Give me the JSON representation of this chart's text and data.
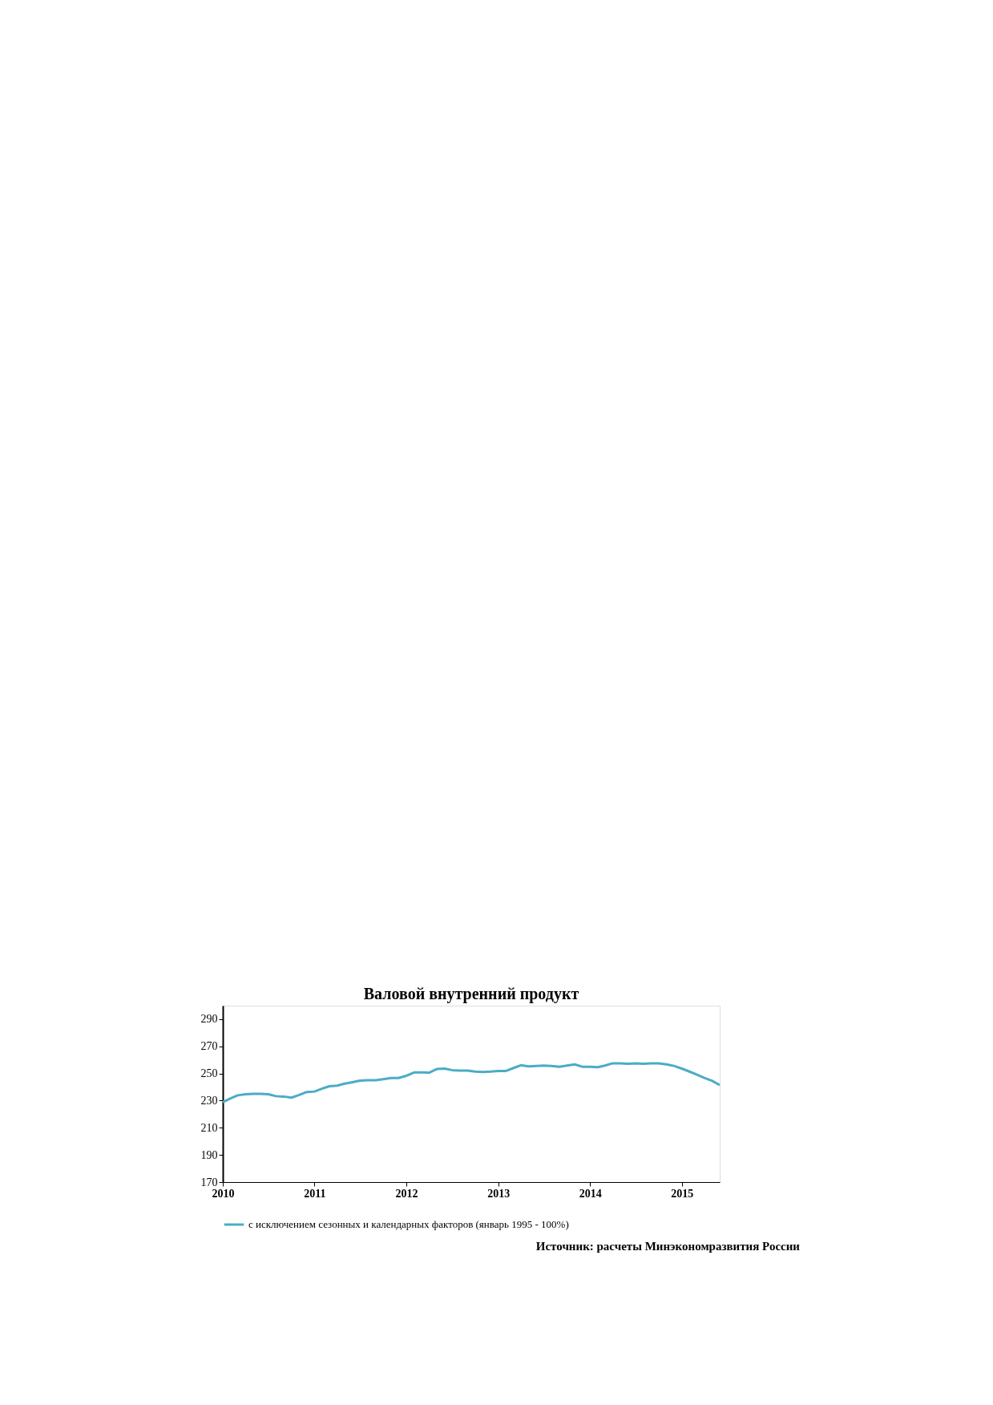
{
  "chart_data": {
    "type": "line",
    "title": "Валовой внутренний продукт",
    "x": [
      "2010-01",
      "2010-02",
      "2010-03",
      "2010-04",
      "2010-05",
      "2010-06",
      "2010-07",
      "2010-08",
      "2010-09",
      "2010-10",
      "2010-11",
      "2010-12",
      "2011-01",
      "2011-02",
      "2011-03",
      "2011-04",
      "2011-05",
      "2011-06",
      "2011-07",
      "2011-08",
      "2011-09",
      "2011-10",
      "2011-11",
      "2011-12",
      "2012-01",
      "2012-02",
      "2012-03",
      "2012-04",
      "2012-05",
      "2012-06",
      "2012-07",
      "2012-08",
      "2012-09",
      "2012-10",
      "2012-11",
      "2012-12",
      "2013-01",
      "2013-02",
      "2013-03",
      "2013-04",
      "2013-05",
      "2013-06",
      "2013-07",
      "2013-08",
      "2013-09",
      "2013-10",
      "2013-11",
      "2013-12",
      "2014-01",
      "2014-02",
      "2014-03",
      "2014-04",
      "2014-05",
      "2014-06",
      "2014-07",
      "2014-08",
      "2014-09",
      "2014-10",
      "2014-11",
      "2014-12",
      "2015-01",
      "2015-02",
      "2015-03",
      "2015-04",
      "2015-05",
      "2015-06"
    ],
    "series": [
      {
        "name": "с исключением сезонных и календарных факторов (январь 1995 - 100%)",
        "color": "#4bacc6",
        "values": [
          228.9,
          231.7,
          233.9,
          234.7,
          235,
          235,
          234.7,
          233.3,
          233,
          232.2,
          234.2,
          236.4,
          236.7,
          238.9,
          240.6,
          241.1,
          242.5,
          243.6,
          244.7,
          245,
          245,
          245.8,
          246.7,
          246.7,
          248.3,
          250.8,
          250.8,
          250.6,
          253.3,
          253.6,
          252.5,
          252.2,
          252.2,
          251.4,
          251.1,
          251.4,
          251.9,
          251.9,
          253.9,
          256.1,
          255.3,
          255.6,
          255.8,
          255.6,
          255,
          255.8,
          256.7,
          255,
          255,
          254.7,
          255.8,
          257.5,
          257.5,
          257.2,
          257.5,
          257.2,
          257.5,
          257.5,
          256.7,
          255.6,
          253.6,
          251.4,
          249.2,
          246.7,
          244.7,
          241.5
        ]
      }
    ],
    "xlim": [
      "2010-01",
      "2015-06"
    ],
    "xticks": [
      "2010",
      "2011",
      "2012",
      "2013",
      "2014",
      "2015"
    ],
    "ylim": [
      170,
      300
    ],
    "yticks": [
      170,
      190,
      210,
      230,
      250,
      270,
      290
    ],
    "grid": false,
    "legend": "bottom",
    "marker": "none",
    "line_style": "solid",
    "annotations": [
      "Источник:  расчеты Минэкономразвития России"
    ]
  }
}
